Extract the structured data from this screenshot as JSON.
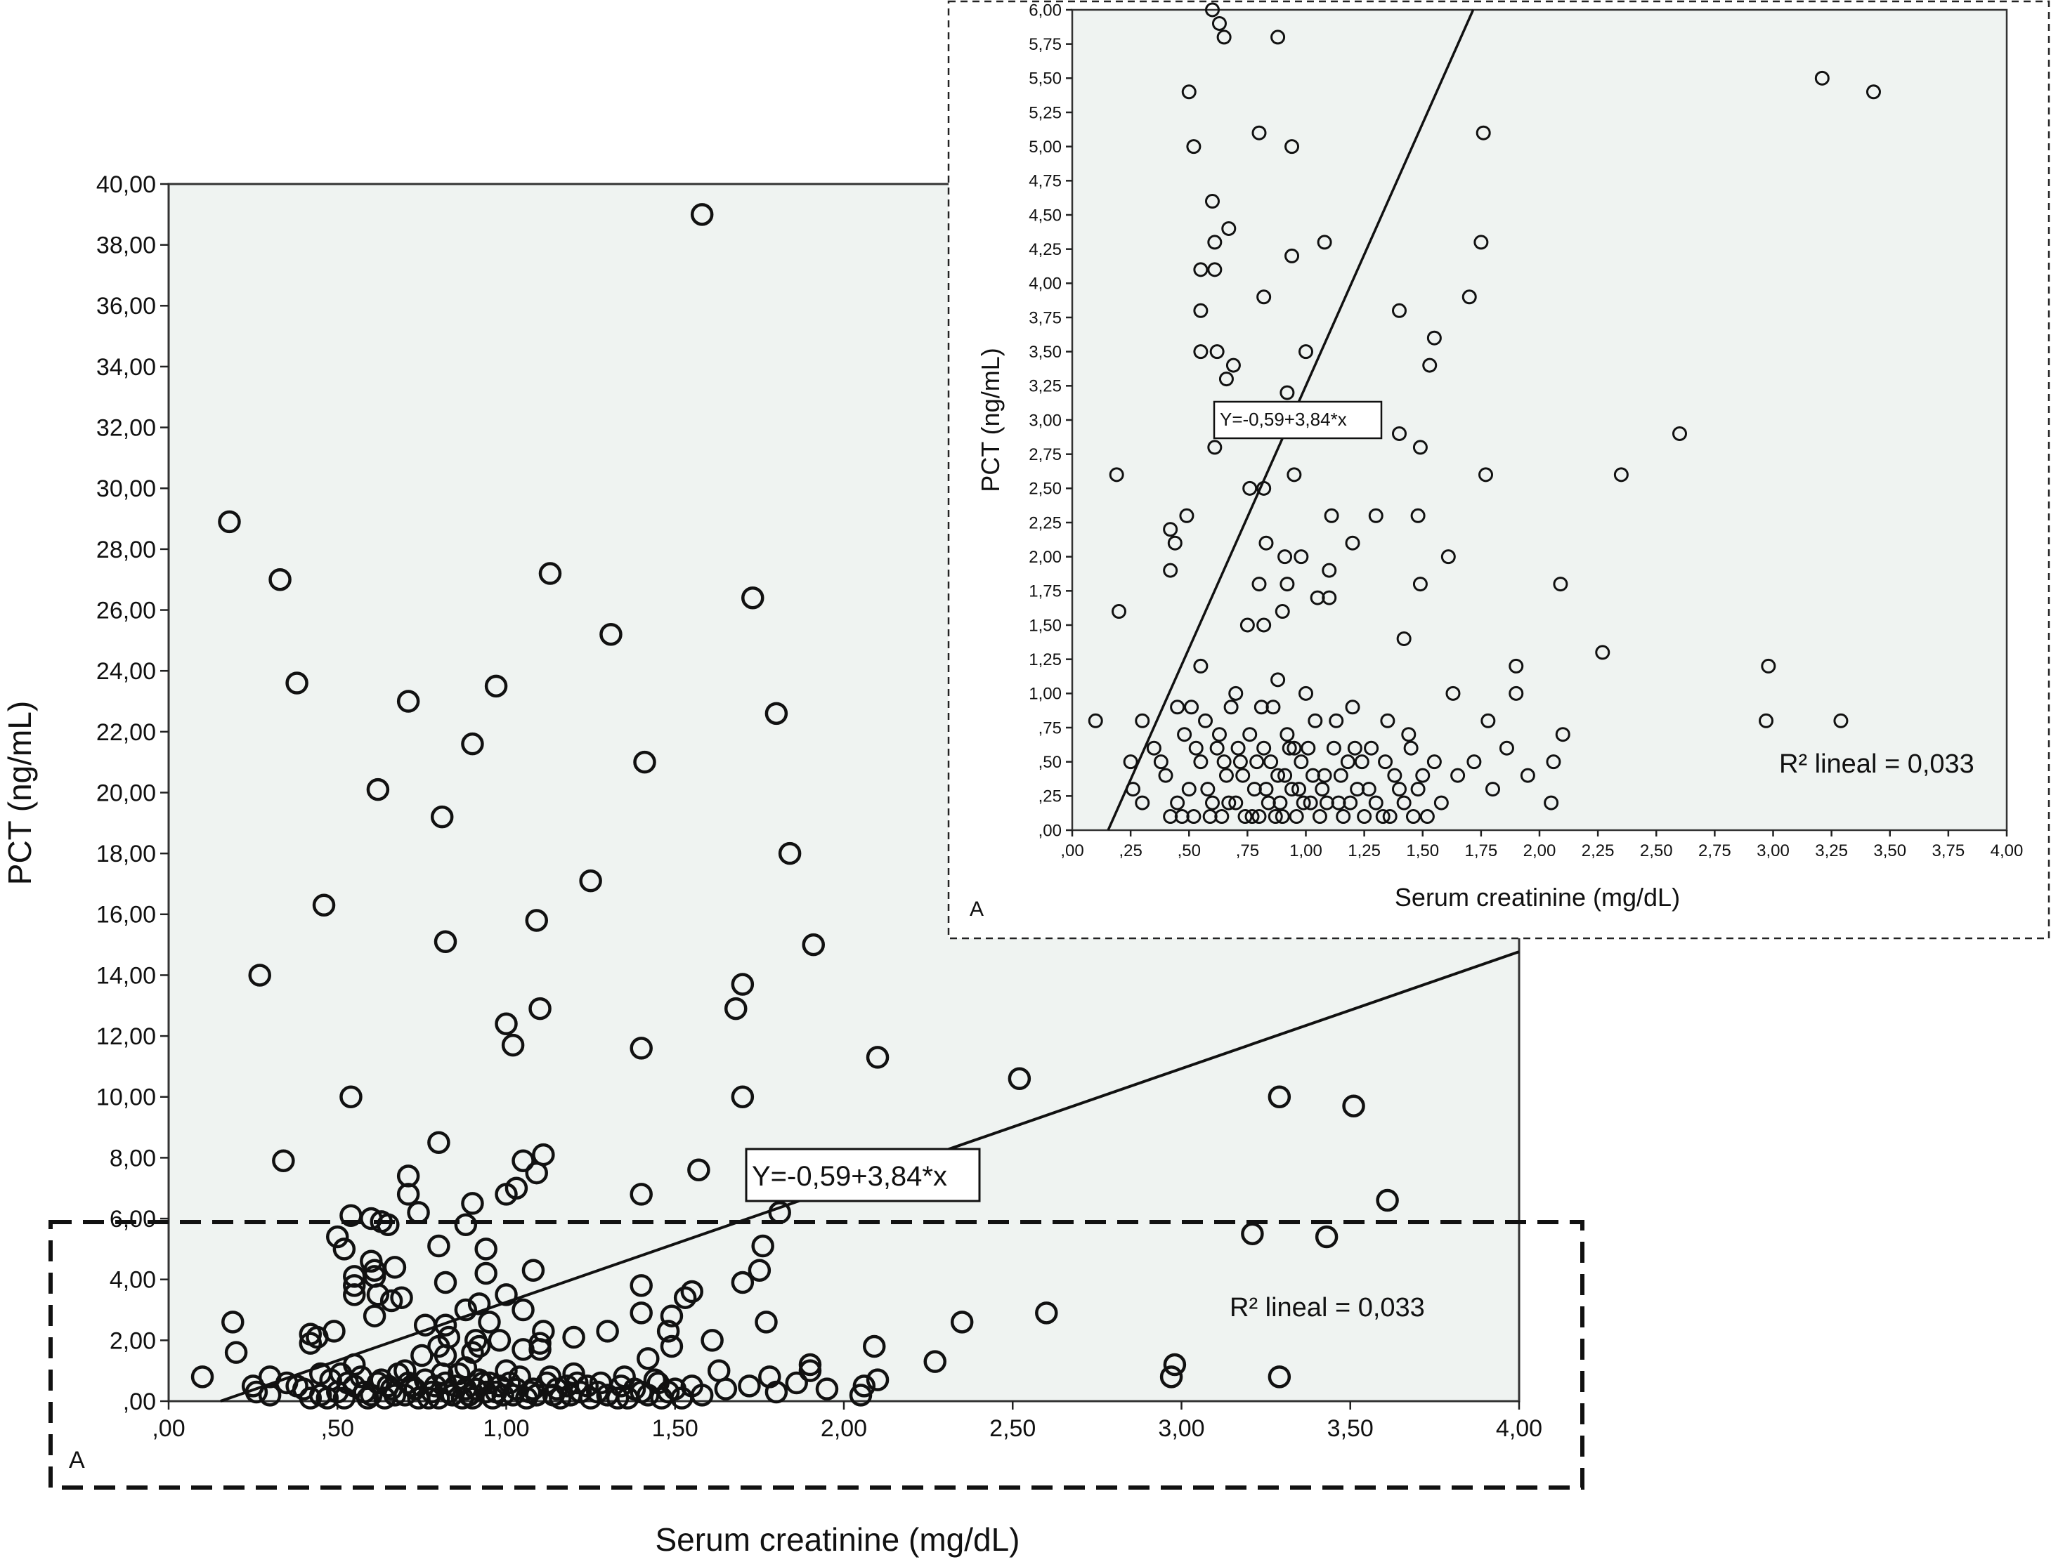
{
  "chart_data": [
    {
      "type": "scatter",
      "panel_label": "A",
      "xlabel": "Serum creatinine (mg/dL)",
      "ylabel": "PCT (ng/mL)",
      "xlim": [
        0,
        4
      ],
      "ylim": [
        0,
        40
      ],
      "xticks": [
        ",00",
        ",50",
        "1,00",
        "1,50",
        "2,00",
        "2,50",
        "3,00",
        "3,50",
        "4,00"
      ],
      "yticks": [
        ",00",
        "2,00",
        "4,00",
        "6,00",
        "8,00",
        "10,00",
        "12,00",
        "14,00",
        "16,00",
        "18,00",
        "20,00",
        "22,00",
        "24,00",
        "26,00",
        "28,00",
        "30,00",
        "32,00",
        "34,00",
        "36,00",
        "38,00",
        "40,00"
      ],
      "fit_line": {
        "intercept": -0.59,
        "slope": 3.84,
        "label": "Y=-0,59+3,84*x"
      },
      "r2_text": "R² lineal = 0,033",
      "grid": false,
      "highlight_region": {
        "x": [
          0,
          4
        ],
        "y": [
          0,
          5.9
        ]
      },
      "points": [
        [
          1.58,
          39.0
        ],
        [
          0.18,
          28.9
        ],
        [
          0.33,
          27.0
        ],
        [
          1.13,
          27.2
        ],
        [
          1.73,
          26.4
        ],
        [
          1.31,
          25.2
        ],
        [
          0.38,
          23.6
        ],
        [
          0.97,
          23.5
        ],
        [
          0.71,
          23.0
        ],
        [
          1.8,
          22.6
        ],
        [
          0.9,
          21.6
        ],
        [
          1.41,
          21.0
        ],
        [
          0.62,
          20.1
        ],
        [
          0.81,
          19.2
        ],
        [
          1.84,
          18.0
        ],
        [
          1.25,
          17.1
        ],
        [
          0.46,
          16.3
        ],
        [
          0.82,
          15.1
        ],
        [
          1.09,
          15.8
        ],
        [
          1.91,
          15.0
        ],
        [
          0.27,
          14.0
        ],
        [
          1.7,
          13.7
        ],
        [
          1.68,
          12.9
        ],
        [
          1.1,
          12.9
        ],
        [
          1.0,
          12.4
        ],
        [
          1.02,
          11.7
        ],
        [
          1.4,
          11.6
        ],
        [
          2.1,
          11.3
        ],
        [
          2.52,
          10.6
        ],
        [
          0.54,
          10.0
        ],
        [
          1.7,
          10.0
        ],
        [
          3.29,
          10.0
        ],
        [
          3.51,
          9.7
        ],
        [
          0.8,
          8.5
        ],
        [
          0.34,
          7.9
        ],
        [
          1.05,
          7.9
        ],
        [
          1.11,
          8.1
        ],
        [
          1.57,
          7.6
        ],
        [
          0.71,
          7.4
        ],
        [
          1.09,
          7.5
        ],
        [
          1.03,
          7.0
        ],
        [
          1.0,
          6.8
        ],
        [
          0.71,
          6.8
        ],
        [
          1.4,
          6.8
        ],
        [
          3.61,
          6.6
        ],
        [
          0.9,
          6.5
        ],
        [
          0.74,
          6.2
        ],
        [
          0.54,
          6.1
        ],
        [
          0.6,
          6.0
        ],
        [
          0.63,
          5.9
        ],
        [
          0.65,
          5.8
        ],
        [
          1.81,
          6.2
        ],
        [
          0.5,
          5.4
        ],
        [
          0.88,
          5.8
        ],
        [
          0.8,
          5.1
        ],
        [
          0.52,
          5.0
        ],
        [
          0.94,
          5.0
        ],
        [
          1.76,
          5.1
        ],
        [
          3.21,
          5.5
        ],
        [
          3.43,
          5.4
        ],
        [
          0.6,
          4.6
        ],
        [
          0.61,
          4.3
        ],
        [
          0.67,
          4.4
        ],
        [
          0.94,
          4.2
        ],
        [
          1.08,
          4.3
        ],
        [
          0.55,
          4.1
        ],
        [
          0.61,
          4.1
        ],
        [
          0.82,
          3.9
        ],
        [
          1.4,
          3.8
        ],
        [
          1.7,
          3.9
        ],
        [
          1.75,
          4.3
        ],
        [
          0.55,
          3.8
        ],
        [
          0.62,
          3.5
        ],
        [
          0.55,
          3.5
        ],
        [
          1.0,
          3.5
        ],
        [
          1.53,
          3.4
        ],
        [
          1.55,
          3.6
        ],
        [
          0.92,
          3.2
        ],
        [
          0.66,
          3.3
        ],
        [
          0.69,
          3.4
        ],
        [
          0.88,
          3.0
        ],
        [
          1.05,
          3.0
        ],
        [
          1.4,
          2.9
        ],
        [
          1.49,
          2.8
        ],
        [
          1.77,
          2.6
        ],
        [
          2.6,
          2.9
        ],
        [
          0.61,
          2.8
        ],
        [
          0.95,
          2.6
        ],
        [
          0.19,
          2.6
        ],
        [
          0.76,
          2.5
        ],
        [
          1.48,
          2.3
        ],
        [
          1.3,
          2.3
        ],
        [
          0.82,
          2.5
        ],
        [
          2.35,
          2.6
        ],
        [
          0.49,
          2.3
        ],
        [
          0.42,
          2.2
        ],
        [
          0.44,
          2.1
        ],
        [
          0.83,
          2.1
        ],
        [
          1.11,
          2.3
        ],
        [
          1.2,
          2.1
        ],
        [
          0.2,
          1.6
        ],
        [
          0.91,
          2.0
        ],
        [
          0.98,
          2.0
        ],
        [
          1.1,
          1.9
        ],
        [
          1.61,
          2.0
        ],
        [
          2.09,
          1.8
        ],
        [
          0.42,
          1.9
        ],
        [
          0.8,
          1.8
        ],
        [
          0.92,
          1.8
        ],
        [
          1.05,
          1.7
        ],
        [
          1.49,
          1.8
        ],
        [
          0.9,
          1.6
        ],
        [
          0.75,
          1.5
        ],
        [
          0.82,
          1.5
        ],
        [
          1.1,
          1.7
        ],
        [
          1.42,
          1.4
        ],
        [
          0.3,
          0.8
        ],
        [
          2.27,
          1.3
        ],
        [
          2.98,
          1.2
        ],
        [
          3.29,
          0.8
        ],
        [
          2.97,
          0.8
        ],
        [
          1.9,
          1.2
        ],
        [
          1.9,
          1.0
        ],
        [
          2.1,
          0.7
        ],
        [
          2.06,
          0.5
        ],
        [
          1.86,
          0.6
        ],
        [
          1.63,
          1.0
        ],
        [
          1.72,
          0.5
        ],
        [
          1.78,
          0.8
        ],
        [
          0.1,
          0.8
        ],
        [
          0.25,
          0.5
        ],
        [
          0.26,
          0.3
        ],
        [
          0.45,
          0.9
        ],
        [
          0.55,
          1.2
        ],
        [
          0.7,
          1.0
        ],
        [
          0.88,
          1.1
        ],
        [
          1.0,
          1.0
        ],
        [
          1.2,
          0.9
        ],
        [
          1.35,
          0.8
        ],
        [
          1.45,
          0.6
        ],
        [
          1.55,
          0.5
        ],
        [
          1.65,
          0.4
        ],
        [
          1.8,
          0.3
        ],
        [
          1.95,
          0.4
        ],
        [
          2.05,
          0.2
        ],
        [
          0.3,
          0.2
        ],
        [
          0.35,
          0.6
        ],
        [
          0.4,
          0.4
        ],
        [
          0.42,
          0.1
        ],
        [
          0.48,
          0.7
        ],
        [
          0.5,
          0.3
        ],
        [
          0.52,
          0.1
        ],
        [
          0.55,
          0.5
        ],
        [
          0.57,
          0.8
        ],
        [
          0.6,
          0.2
        ],
        [
          0.62,
          0.6
        ],
        [
          0.64,
          0.1
        ],
        [
          0.66,
          0.4
        ],
        [
          0.68,
          0.9
        ],
        [
          0.7,
          0.2
        ],
        [
          0.72,
          0.5
        ],
        [
          0.74,
          0.1
        ],
        [
          0.76,
          0.7
        ],
        [
          0.78,
          0.3
        ],
        [
          0.8,
          0.1
        ],
        [
          0.82,
          0.6
        ],
        [
          0.84,
          0.2
        ],
        [
          0.86,
          0.9
        ],
        [
          0.88,
          0.4
        ],
        [
          0.9,
          0.1
        ],
        [
          0.92,
          0.7
        ],
        [
          0.94,
          0.3
        ],
        [
          0.96,
          0.1
        ],
        [
          0.98,
          0.5
        ],
        [
          1.02,
          0.2
        ],
        [
          1.04,
          0.8
        ],
        [
          1.06,
          0.1
        ],
        [
          1.08,
          0.4
        ],
        [
          1.12,
          0.6
        ],
        [
          1.14,
          0.2
        ],
        [
          1.16,
          0.1
        ],
        [
          1.18,
          0.5
        ],
        [
          1.22,
          0.3
        ],
        [
          1.25,
          0.1
        ],
        [
          1.28,
          0.6
        ],
        [
          1.3,
          0.2
        ],
        [
          1.33,
          0.1
        ],
        [
          1.38,
          0.4
        ],
        [
          1.42,
          0.2
        ],
        [
          1.48,
          0.3
        ],
        [
          1.52,
          0.1
        ],
        [
          1.58,
          0.2
        ],
        [
          0.45,
          0.2
        ],
        [
          0.53,
          0.6
        ],
        [
          0.58,
          0.3
        ],
        [
          0.63,
          0.7
        ],
        [
          0.67,
          0.2
        ],
        [
          0.73,
          0.4
        ],
        [
          0.77,
          0.1
        ],
        [
          0.81,
          0.9
        ],
        [
          0.85,
          0.5
        ],
        [
          0.89,
          0.2
        ],
        [
          0.93,
          0.6
        ],
        [
          0.97,
          0.3
        ],
        [
          1.01,
          0.6
        ],
        [
          1.07,
          0.3
        ],
        [
          1.13,
          0.8
        ],
        [
          1.19,
          0.2
        ],
        [
          1.24,
          0.5
        ],
        [
          1.36,
          0.1
        ],
        [
          1.44,
          0.7
        ],
        [
          0.38,
          0.5
        ],
        [
          0.47,
          0.1
        ],
        [
          0.51,
          0.9
        ],
        [
          0.59,
          0.1
        ],
        [
          0.65,
          0.5
        ],
        [
          0.71,
          0.6
        ],
        [
          0.79,
          0.5
        ],
        [
          0.83,
          0.3
        ],
        [
          0.87,
          0.1
        ],
        [
          0.91,
          0.4
        ],
        [
          0.95,
          0.6
        ],
        [
          0.99,
          0.2
        ],
        [
          1.03,
          0.4
        ],
        [
          1.09,
          0.2
        ],
        [
          1.15,
          0.4
        ],
        [
          1.21,
          0.6
        ],
        [
          1.27,
          0.3
        ],
        [
          1.34,
          0.5
        ],
        [
          1.4,
          0.3
        ],
        [
          1.46,
          0.1
        ],
        [
          1.5,
          0.4
        ]
      ]
    },
    {
      "type": "scatter",
      "panel_label": "A",
      "xlabel": "Serum creatinine (mg/dL)",
      "ylabel": "PCT (ng/mL)",
      "xlim": [
        0,
        4
      ],
      "ylim": [
        0,
        6
      ],
      "xticks": [
        ",00",
        ",25",
        ",50",
        ",75",
        "1,00",
        "1,25",
        "1,50",
        "1,75",
        "2,00",
        "2,25",
        "2,50",
        "2,75",
        "3,00",
        "3,25",
        "3,50",
        "3,75",
        "4,00"
      ],
      "yticks": [
        ",00",
        ",25",
        ",50",
        ",75",
        "1,00",
        "1,25",
        "1,50",
        "1,75",
        "2,00",
        "2,25",
        "2,50",
        "2,75",
        "3,00",
        "3,25",
        "3,50",
        "3,75",
        "4,00",
        "4,25",
        "4,50",
        "4,75",
        "5,00",
        "5,25",
        "5,50",
        "5,75",
        "6,00"
      ],
      "fit_line": {
        "intercept": -0.59,
        "slope": 3.84,
        "label": "Y=-0,59+3,84*x"
      },
      "r2_text": "R² lineal = 0,033",
      "grid": false,
      "note": "zoomed view of highlighted region"
    }
  ]
}
